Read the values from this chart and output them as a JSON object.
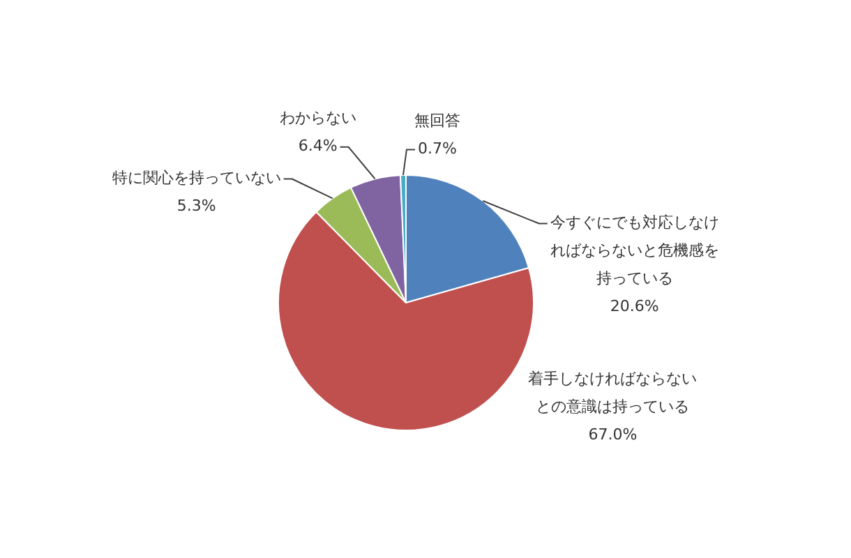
{
  "chart_data": {
    "type": "pie",
    "categories": [
      "今すぐにでも対応しなければならないと危機感を持っている",
      "着手しなければならないとの意識は持っている",
      "特に関心を持っていない",
      "わからない",
      "無回答"
    ],
    "values": [
      20.6,
      67.0,
      5.3,
      6.4,
      0.7
    ],
    "colors": [
      "#4f81bd",
      "#c0504d",
      "#9bbb59",
      "#8064a2",
      "#4bacc6"
    ],
    "value_labels": [
      "20.6%",
      "67.0%",
      "5.3%",
      "6.4%",
      "0.7%"
    ]
  }
}
